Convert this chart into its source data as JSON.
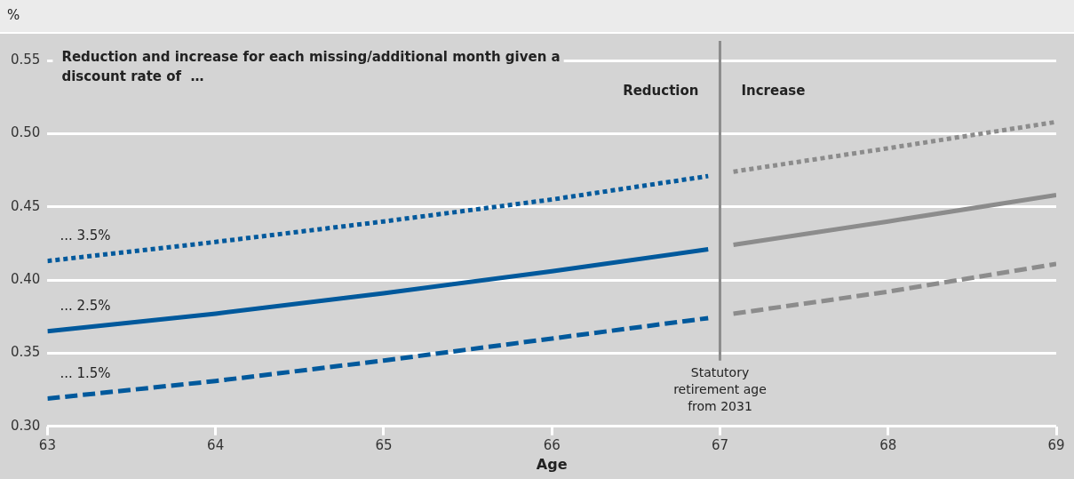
{
  "chart_data": {
    "type": "line",
    "xlabel": "Age",
    "ylabel": "%",
    "xlim": [
      63,
      69
    ],
    "xticks": [
      63,
      64,
      65,
      66,
      67,
      68,
      69
    ],
    "ylim": [
      0.3,
      0.55
    ],
    "yticks": [
      {
        "value": 0.3,
        "label": "0.30"
      },
      0.35,
      {
        "value": 0.4,
        "label": "0.40"
      },
      0.45,
      {
        "value": 0.5,
        "label": "0.50"
      },
      0.55
    ],
    "grid": "y",
    "legend": false,
    "marker": "none",
    "series": [
      {
        "name": "... 3.5%",
        "color": "#00599c",
        "line_style": "dotted",
        "x": [
          63,
          64,
          65,
          66,
          66.93
        ],
        "values": [
          0.413,
          0.426,
          0.44,
          0.455,
          0.471
        ]
      },
      {
        "name": "... 2.5%",
        "color": "#00599c",
        "line_style": "solid",
        "x": [
          63,
          64,
          65,
          66,
          66.93
        ],
        "values": [
          0.365,
          0.377,
          0.391,
          0.406,
          0.421
        ]
      },
      {
        "name": "... 1.5%",
        "color": "#00599c",
        "line_style": "dashed",
        "x": [
          63,
          64,
          65,
          66,
          66.93
        ],
        "values": [
          0.319,
          0.331,
          0.345,
          0.36,
          0.374
        ]
      },
      {
        "color": "#8c8c8c",
        "line_style": "dotted",
        "x": [
          67.08,
          68,
          69
        ],
        "values": [
          0.474,
          0.49,
          0.508
        ]
      },
      {
        "color": "#8c8c8c",
        "line_style": "solid",
        "x": [
          67.08,
          68,
          69
        ],
        "values": [
          0.424,
          0.44,
          0.458
        ]
      },
      {
        "color": "#8c8c8c",
        "line_style": "dashed",
        "x": [
          67.08,
          68,
          69
        ],
        "values": [
          0.377,
          0.392,
          0.411
        ]
      }
    ],
    "ref_lines": [
      {
        "axis": "x",
        "value": 67,
        "label": "Statutory retirement age from 2031",
        "color": "#8c8c8c"
      }
    ],
    "annotations": [
      "Reduction and increase for each missing/additional month given a discount rate of  …",
      "Reduction",
      "Increase"
    ]
  }
}
